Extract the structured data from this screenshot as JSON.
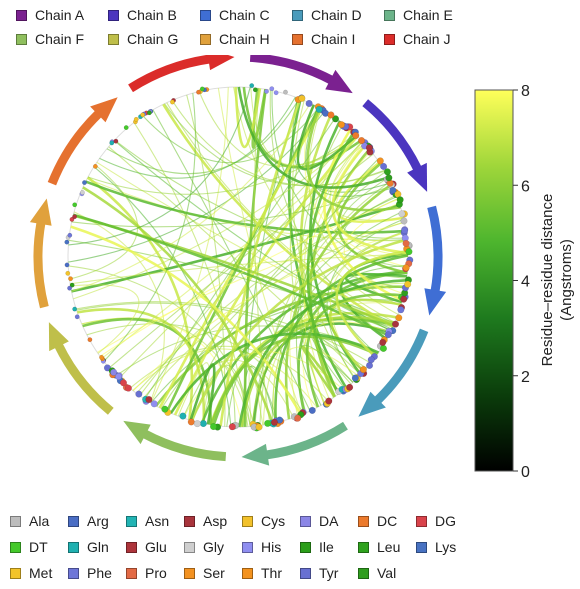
{
  "chart_data": {
    "type": "chord",
    "chains": [
      {
        "name": "Chain A",
        "color": "#7b2190"
      },
      {
        "name": "Chain B",
        "color": "#4b35bf"
      },
      {
        "name": "Chain C",
        "color": "#3f6ed4"
      },
      {
        "name": "Chain D",
        "color": "#4a9bbb"
      },
      {
        "name": "Chain E",
        "color": "#6cb48a"
      },
      {
        "name": "Chain F",
        "color": "#8fbf5e"
      },
      {
        "name": "Chain G",
        "color": "#bfbf4a"
      },
      {
        "name": "Chain H",
        "color": "#e0a13c"
      },
      {
        "name": "Chain I",
        "color": "#e5712f"
      },
      {
        "name": "Chain J",
        "color": "#db2c2a"
      }
    ],
    "residues": [
      {
        "name": "Ala",
        "color": "#bdbdbd"
      },
      {
        "name": "Arg",
        "color": "#4a6dc4"
      },
      {
        "name": "Asn",
        "color": "#22b4b4"
      },
      {
        "name": "Asp",
        "color": "#a8343c"
      },
      {
        "name": "Cys",
        "color": "#f2c12b"
      },
      {
        "name": "DA",
        "color": "#8b86e6"
      },
      {
        "name": "DC",
        "color": "#ec7a2c"
      },
      {
        "name": "DG",
        "color": "#d9434b"
      },
      {
        "name": "DT",
        "color": "#44c92b"
      },
      {
        "name": "Gln",
        "color": "#1fb0b0"
      },
      {
        "name": "Glu",
        "color": "#ad343b"
      },
      {
        "name": "Gly",
        "color": "#cfcfcf"
      },
      {
        "name": "His",
        "color": "#8f8ef0"
      },
      {
        "name": "Ile",
        "color": "#2b9e19"
      },
      {
        "name": "Leu",
        "color": "#2fa21e"
      },
      {
        "name": "Lys",
        "color": "#4872c2"
      },
      {
        "name": "Met",
        "color": "#f3c42a"
      },
      {
        "name": "Phe",
        "color": "#6e76d8"
      },
      {
        "name": "Pro",
        "color": "#e36a45"
      },
      {
        "name": "Ser",
        "color": "#f39221"
      },
      {
        "name": "Thr",
        "color": "#f3921e"
      },
      {
        "name": "Tyr",
        "color": "#6870d2"
      },
      {
        "name": "Val",
        "color": "#2f9d1e"
      }
    ],
    "colorbar": {
      "label_line1": "Residue–residue distance",
      "label_line2": "(Angstroms)",
      "min": 0,
      "max": 8,
      "ticks": [
        "0",
        "2",
        "4",
        "6",
        "8"
      ],
      "colors": [
        "#000000",
        "#0b3d0b",
        "#1e7a1e",
        "#4db52e",
        "#9fd63a",
        "#ffff5a"
      ]
    }
  }
}
